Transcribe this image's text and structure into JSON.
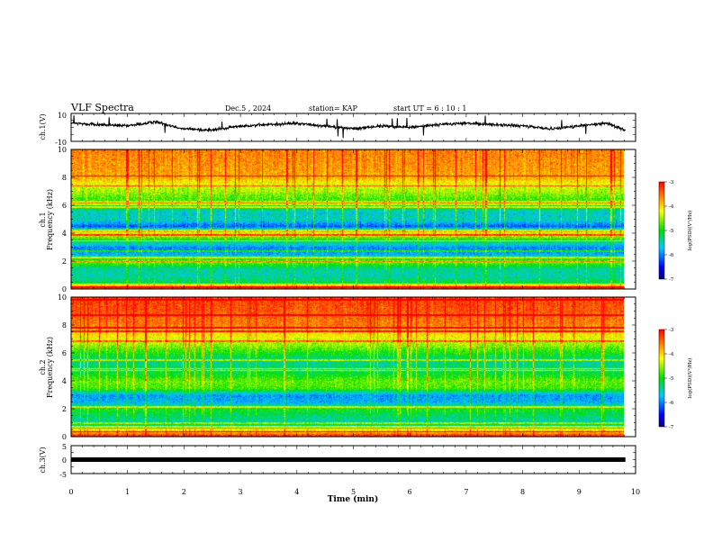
{
  "header": {
    "title": "VLF Spectra",
    "date": "Dec.5 , 2024",
    "station": "station= KAP",
    "start": "start  UT  =   6  : 10 : 1"
  },
  "chart_data": [
    {
      "type": "line",
      "name": "ch1-voltage",
      "ylabel": "ch.1(V)",
      "ylim": [
        -10,
        10
      ],
      "ytick_labels": [
        "10",
        "-10"
      ],
      "xlim": [
        0,
        10
      ],
      "description_values": "noisy waveform oscillating roughly between -4 and +6 V",
      "x_min": [
        0,
        0.5,
        1.0,
        1.5,
        2.0,
        2.5,
        3.0,
        3.5,
        4.0,
        4.5,
        5.0,
        5.5,
        6.0,
        6.5,
        7.0,
        7.5,
        8.0,
        8.5,
        9.0,
        9.5,
        9.82
      ],
      "y": [
        3,
        2,
        1,
        4,
        -1,
        -2,
        1,
        2,
        3,
        1,
        -1,
        1,
        0,
        2,
        3,
        2,
        1,
        -1,
        1,
        3,
        -2
      ]
    },
    {
      "type": "heatmap",
      "name": "ch1-spectrogram",
      "ylabel": "ch.1\nFrequency (kHz)",
      "ylim": [
        0,
        10
      ],
      "yticks": [
        0,
        2,
        4,
        6,
        8,
        10
      ],
      "xlim": [
        0,
        10
      ],
      "data_end_min": 9.82,
      "colorbar": {
        "label": "log(PSD)(V²/Hz)",
        "range": [
          -7,
          -3
        ],
        "ticks": [
          -3,
          -4,
          -5,
          -6,
          -7
        ]
      },
      "band_levels_by_kHz": [
        [
          0,
          -4.2
        ],
        [
          0.5,
          -5.2
        ],
        [
          1,
          -5.5
        ],
        [
          1.5,
          -5.4
        ],
        [
          2,
          -4.6
        ],
        [
          2.5,
          -5.8
        ],
        [
          3,
          -6.0
        ],
        [
          3.5,
          -5.2
        ],
        [
          4,
          -4.0
        ],
        [
          4.5,
          -6.2
        ],
        [
          5,
          -5.5
        ],
        [
          5.5,
          -5.6
        ],
        [
          6,
          -5.0
        ],
        [
          6.5,
          -4.8
        ],
        [
          7,
          -4.5
        ],
        [
          7.5,
          -4.3
        ],
        [
          8,
          -3.8
        ],
        [
          9,
          -3.7
        ],
        [
          10,
          -3.6
        ]
      ]
    },
    {
      "type": "heatmap",
      "name": "ch2-spectrogram",
      "ylabel": "ch.2\nFrequency (kHz)",
      "ylim": [
        0,
        10
      ],
      "yticks": [
        0,
        2,
        4,
        6,
        8,
        10
      ],
      "xlim": [
        0,
        10
      ],
      "data_end_min": 9.82,
      "colorbar": {
        "label": "log(PSD)(V²/Hz)",
        "range": [
          -7,
          -3
        ],
        "ticks": [
          -3,
          -4,
          -5,
          -6,
          -7
        ]
      },
      "band_levels_by_kHz": [
        [
          0,
          -3.8
        ],
        [
          0.5,
          -5.0
        ],
        [
          1,
          -5.5
        ],
        [
          1.5,
          -5.3
        ],
        [
          2,
          -5.0
        ],
        [
          2.5,
          -5.8
        ],
        [
          3,
          -5.9
        ],
        [
          3.5,
          -4.8
        ],
        [
          4,
          -4.7
        ],
        [
          4.5,
          -5.1
        ],
        [
          5,
          -5.3
        ],
        [
          5.5,
          -5.4
        ],
        [
          6,
          -5.0
        ],
        [
          6.5,
          -4.6
        ],
        [
          7,
          -4.3
        ],
        [
          7.5,
          -4.0
        ],
        [
          8,
          -3.6
        ],
        [
          9,
          -3.4
        ],
        [
          10,
          -3.3
        ]
      ]
    },
    {
      "type": "line",
      "name": "ch3-voltage",
      "ylabel": "ch.3(V)",
      "ylim": [
        -5,
        5
      ],
      "ytick_labels": [
        "5",
        "0",
        "-5"
      ],
      "xlim": [
        0,
        10
      ],
      "x_min": [
        0,
        9.82
      ],
      "y": [
        0,
        0
      ],
      "xlabel": "Time  (min)",
      "xticks": [
        0,
        1,
        2,
        3,
        4,
        5,
        6,
        7,
        8,
        9,
        10
      ]
    }
  ]
}
